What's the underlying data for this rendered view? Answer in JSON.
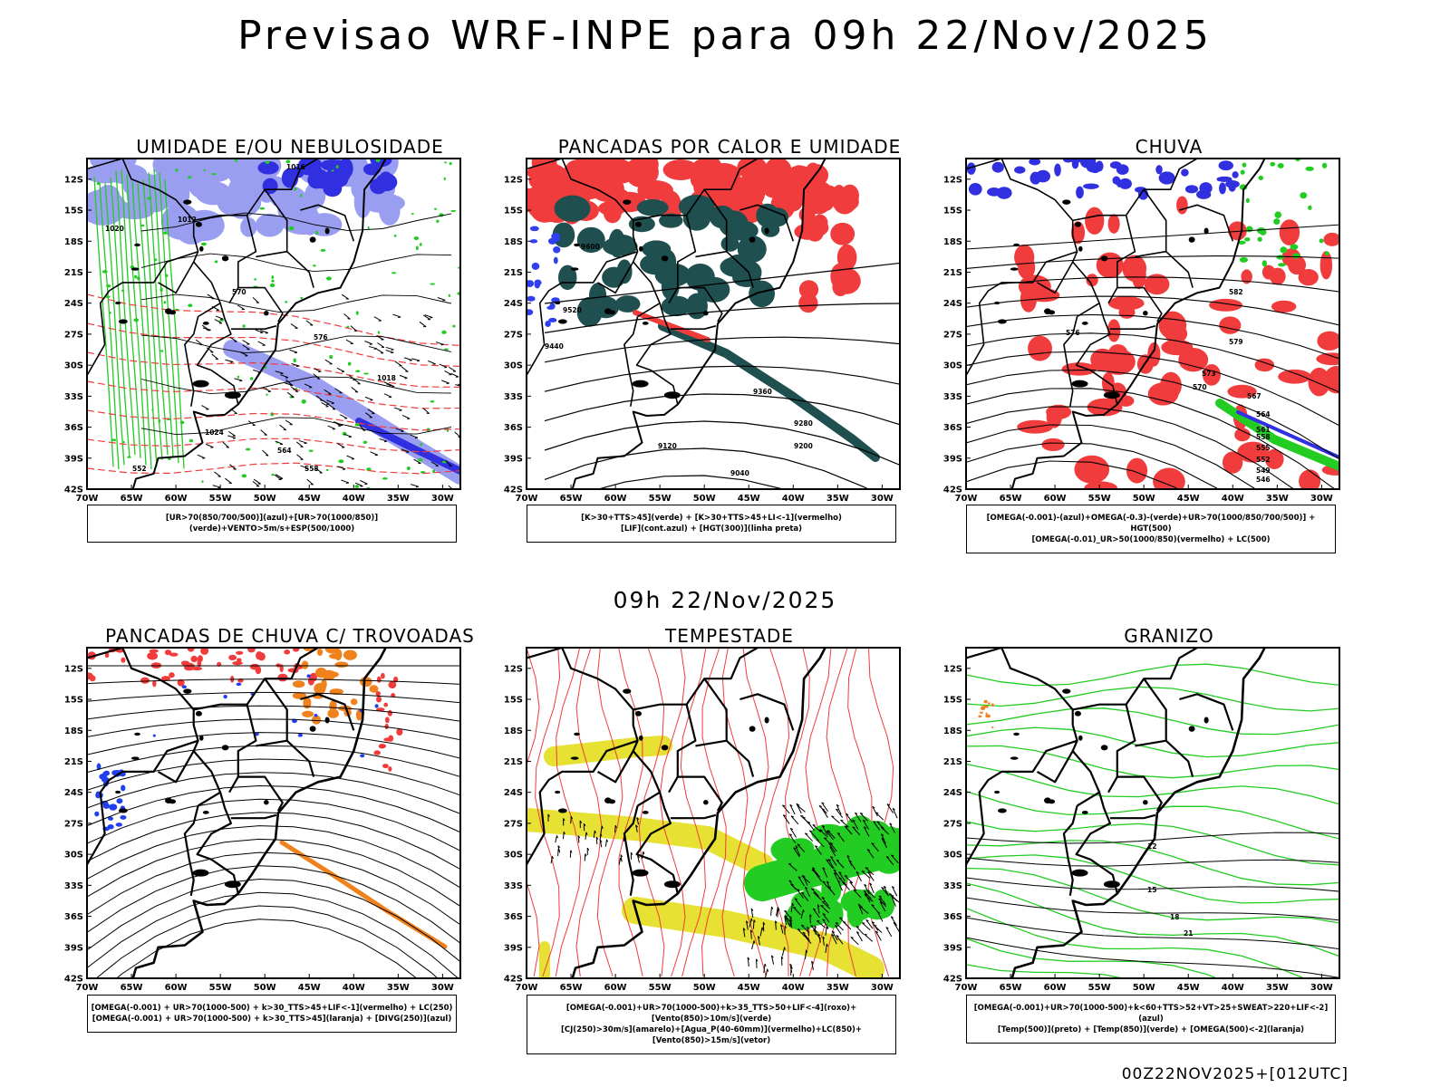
{
  "title": "Previsao WRF-INPE  para 09h 22/Nov/2025",
  "mid_title": "09h 22/Nov/2025",
  "footer": "00Z22NOV2025+[012UTC]",
  "lat_labels": [
    "12S",
    "15S",
    "18S",
    "21S",
    "24S",
    "27S",
    "30S",
    "33S",
    "36S",
    "39S",
    "42S"
  ],
  "lon_labels": [
    "70W",
    "65W",
    "60W",
    "55W",
    "50W",
    "45W",
    "40W",
    "35W",
    "30W"
  ],
  "panels": [
    {
      "title": "UMIDADE E/OU NEBULOSIDADE",
      "legend": [
        "[UR>70(850/700/500)](azul)+[UR>70(1000/850)](verde)+VENTO>5m/s+ESP(500/1000)"
      ],
      "contour_labels": [
        "1016",
        "1012",
        "1020",
        "1024",
        "570",
        "576",
        "564",
        "558",
        "552",
        "1018"
      ]
    },
    {
      "title": "PANCADAS POR CALOR E UMIDADE",
      "legend": [
        "[K>30+TTS>45](verde) + [K>30+TTS>45+LI<-1](vermelho)",
        "[LIF](cont.azul) + [HGT(300)](linha preta)"
      ],
      "contour_labels": [
        "9600",
        "9520",
        "9440",
        "9360",
        "9280",
        "9200",
        "9120",
        "9040"
      ]
    },
    {
      "title": "CHUVA",
      "legend": [
        "[OMEGA(-0.001)-(azul)+OMEGA(-0.3)-(verde)+UR>70(1000/850/700/500)] + HGT(500)",
        "[OMEGA(-0.01)_UR>50(1000/850)(vermelho) + LC(500)"
      ],
      "contour_labels": [
        "582",
        "579",
        "576",
        "573",
        "570",
        "567",
        "564",
        "561",
        "558",
        "555",
        "552",
        "549",
        "546"
      ]
    },
    {
      "title": "PANCADAS DE CHUVA C/ TROVOADAS",
      "legend": [
        "[OMEGA(-0.001) + UR>70(1000-500) + k>30_TTS>45+LIF<-1](vermelho) + LC(250)",
        "[OMEGA(-0.001) + UR>70(1000-500) + k>30_TTS>45](laranja) + [DIVG(250)](azul)"
      ],
      "contour_labels": []
    },
    {
      "title": "TEMPESTADE",
      "legend": [
        "[OMEGA(-0.001)+UR>70(1000-500)+k>35_TTS>50+LIF<-4](roxo)+[Vento(850)>10m/s](verde)",
        "[CJ(250)>30m/s](amarelo)+[Agua_P(40-60mm)](vermelho)+LC(850)+[Vento(850)>15m/s](vetor)"
      ],
      "contour_labels": []
    },
    {
      "title": "GRANIZO",
      "legend": [
        "[OMEGA(-0.001)+UR>70(1000-500)+k<60+TTS>52+VT>25+SWEAT>220+LIF<-2](azul)",
        "[Temp(500)](preto) + [Temp(850)](verde) + [OMEGA(500)<-2](laranja)"
      ],
      "contour_labels": [
        "12",
        "15",
        "18",
        "21"
      ]
    }
  ],
  "colors": {
    "blue_area": "#9a9ef0",
    "dark_blue": "#3030e0",
    "green": "#22cc22",
    "red": "#f03c3c",
    "dark_teal": "#1f4f4f",
    "orange": "#f0821e",
    "yellow": "#e6e132"
  }
}
